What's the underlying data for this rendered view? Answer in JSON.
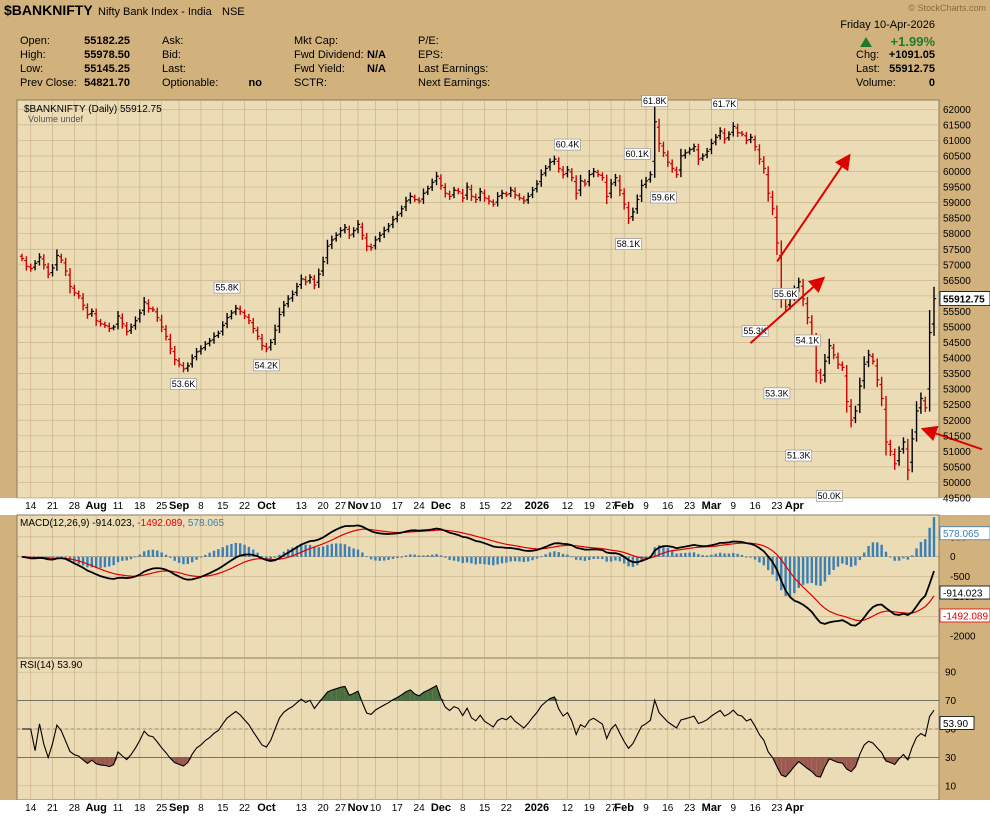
{
  "header": {
    "symbol": "$BANKNIFTY",
    "name": "Nifty Bank Index - India",
    "exchange": "NSE",
    "watermark": "© StockCharts.com",
    "date": "Friday  10-Apr-2026",
    "change_pct": "+1.99%",
    "left": [
      [
        "Open:",
        "55182.25"
      ],
      [
        "High:",
        "55978.50"
      ],
      [
        "Low:",
        "55145.25"
      ],
      [
        "Prev Close:",
        "54821.70"
      ]
    ],
    "mid1": [
      [
        "Ask:",
        ""
      ],
      [
        "Bid:",
        ""
      ],
      [
        "Last:",
        ""
      ],
      [
        "Optionable:",
        "no"
      ]
    ],
    "mid2": [
      [
        "Mkt Cap:",
        ""
      ],
      [
        "Fwd Dividend:",
        "N/A"
      ],
      [
        "Fwd Yield:",
        "N/A"
      ],
      [
        "SCTR:",
        ""
      ]
    ],
    "mid3": [
      "P/E:",
      "EPS:",
      "Last Earnings:",
      "Next Earnings:"
    ],
    "right": [
      [
        "Chg:",
        "+1091.05"
      ],
      [
        "Last:",
        "55912.75"
      ],
      [
        "Volume:",
        "0"
      ]
    ]
  },
  "colors": {
    "panel_bg": "#ecdcb6",
    "header_bg": "#d2b27c",
    "up_bar": "#000000",
    "down_bar": "#cc0000",
    "macd_line": "#000000",
    "signal_line": "#e00000",
    "histogram": "#3a7fb5",
    "rsi_overbought_fill": "#4a6e40",
    "rsi_oversold_fill": "#9a5a50",
    "arrow": "#e00000"
  },
  "chart_data": [
    {
      "type": "ohlc",
      "title": "$BANKNIFTY (Daily) 55912.75",
      "subtitle": "Volume undef",
      "ylim": [
        49500,
        62300
      ],
      "yticks": [
        49500,
        50000,
        50500,
        51000,
        51500,
        52000,
        52500,
        53000,
        53500,
        54000,
        54500,
        55000,
        55500,
        56000,
        56500,
        57000,
        57500,
        58000,
        58500,
        59000,
        59500,
        60000,
        60500,
        61000,
        61500,
        62000
      ],
      "last_value": "55912.75",
      "annotations": [
        {
          "text": "55.8K",
          "index": 47,
          "value": 55800,
          "pos": "above"
        },
        {
          "text": "53.6K",
          "index": 37,
          "value": 53600,
          "pos": "below"
        },
        {
          "text": "54.2K",
          "index": 56,
          "value": 54200,
          "pos": "below"
        },
        {
          "text": "60.4K",
          "index": 125,
          "value": 60400,
          "pos": "above"
        },
        {
          "text": "61.8K",
          "index": 145,
          "value": 61800,
          "pos": "above"
        },
        {
          "text": "61.7K",
          "index": 161,
          "value": 61700,
          "pos": "above"
        },
        {
          "text": "60.1K",
          "index": 141,
          "value": 60100,
          "pos": "above"
        },
        {
          "text": "59.6K",
          "index": 147,
          "value": 59600,
          "pos": "below"
        },
        {
          "text": "58.1K",
          "index": 139,
          "value": 58100,
          "pos": "below"
        },
        {
          "text": "55.6K",
          "index": 175,
          "value": 55600,
          "pos": "above"
        },
        {
          "text": "55.3K",
          "index": 168,
          "value": 55300,
          "pos": "below"
        },
        {
          "text": "54.1K",
          "index": 180,
          "value": 54100,
          "pos": "above"
        },
        {
          "text": "53.3K",
          "index": 173,
          "value": 53300,
          "pos": "below"
        },
        {
          "text": "51.3K",
          "index": 178,
          "value": 51300,
          "pos": "below"
        },
        {
          "text": "50.0K",
          "index": 185,
          "value": 50000,
          "pos": "below"
        }
      ],
      "close": [
        57200,
        56950,
        56880,
        57050,
        57250,
        57000,
        56700,
        56900,
        57300,
        57150,
        56800,
        56300,
        56100,
        56000,
        55700,
        55400,
        55500,
        55200,
        55100,
        55050,
        54950,
        55000,
        55350,
        55100,
        54850,
        55000,
        55200,
        55450,
        55800,
        55600,
        55550,
        55300,
        55000,
        54700,
        54300,
        53950,
        53800,
        53650,
        53750,
        54000,
        54200,
        54300,
        54450,
        54550,
        54700,
        54800,
        55050,
        55300,
        55450,
        55600,
        55500,
        55350,
        55200,
        54950,
        54700,
        54400,
        54300,
        54500,
        54900,
        55400,
        55700,
        55900,
        56050,
        56300,
        56550,
        56450,
        56600,
        56350,
        56700,
        57100,
        57600,
        57800,
        57950,
        58100,
        58200,
        57950,
        58100,
        58300,
        57950,
        57600,
        57550,
        57800,
        57950,
        58100,
        58250,
        58450,
        58600,
        58800,
        59050,
        59200,
        59100,
        59050,
        59300,
        59450,
        59650,
        59850,
        59550,
        59300,
        59200,
        59400,
        59350,
        59150,
        59500,
        59200,
        59100,
        59350,
        59150,
        59050,
        58950,
        59200,
        59300,
        59250,
        59400,
        59250,
        59150,
        59050,
        59200,
        59400,
        59600,
        59900,
        60100,
        60300,
        60400,
        60100,
        59900,
        60050,
        59800,
        59300,
        59700,
        59600,
        59900,
        60000,
        59900,
        59800,
        59200,
        59600,
        59800,
        59400,
        58950,
        58500,
        58700,
        59100,
        59550,
        59700,
        59900,
        61600,
        60900,
        60600,
        60300,
        60100,
        59900,
        60500,
        60600,
        60700,
        60800,
        60400,
        60500,
        60650,
        60900,
        61100,
        61300,
        61050,
        61200,
        61450,
        61250,
        61200,
        61000,
        61100,
        60800,
        60400,
        60100,
        59300,
        58800,
        57700,
        56100,
        55650,
        55900,
        56200,
        56450,
        55900,
        55300,
        54700,
        53600,
        53300,
        53900,
        54400,
        54100,
        53800,
        53700,
        52600,
        52000,
        52300,
        53100,
        53800,
        54100,
        53900,
        53300,
        52700,
        51300,
        51000,
        50600,
        51000,
        51300,
        50400,
        51400,
        52300,
        52700,
        52400,
        54821.7,
        55912.75
      ],
      "x_ticks": [
        {
          "label": "14",
          "index": 2
        },
        {
          "label": "21",
          "index": 7
        },
        {
          "label": "28",
          "index": 12
        },
        {
          "label": "Aug",
          "index": 17,
          "bold": true
        },
        {
          "label": "11",
          "index": 22
        },
        {
          "label": "18",
          "index": 27
        },
        {
          "label": "25",
          "index": 32
        },
        {
          "label": "Sep",
          "index": 36,
          "bold": true
        },
        {
          "label": "8",
          "index": 41
        },
        {
          "label": "15",
          "index": 46
        },
        {
          "label": "22",
          "index": 51
        },
        {
          "label": "Oct",
          "index": 56,
          "bold": true
        },
        {
          "label": "13",
          "index": 64
        },
        {
          "label": "20",
          "index": 69
        },
        {
          "label": "27",
          "index": 73
        },
        {
          "label": "Nov",
          "index": 77,
          "bold": true
        },
        {
          "label": "10",
          "index": 81
        },
        {
          "label": "17",
          "index": 86
        },
        {
          "label": "24",
          "index": 91
        },
        {
          "label": "Dec",
          "index": 96,
          "bold": true
        },
        {
          "label": "8",
          "index": 101
        },
        {
          "label": "15",
          "index": 106
        },
        {
          "label": "22",
          "index": 111
        },
        {
          "label": "2026",
          "index": 118,
          "bold": true
        },
        {
          "label": "12",
          "index": 125
        },
        {
          "label": "19",
          "index": 130
        },
        {
          "label": "27",
          "index": 135
        },
        {
          "label": "Feb",
          "index": 138,
          "bold": true
        },
        {
          "label": "9",
          "index": 143
        },
        {
          "label": "16",
          "index": 148
        },
        {
          "label": "23",
          "index": 153
        },
        {
          "label": "Mar",
          "index": 158,
          "bold": true
        },
        {
          "label": "9",
          "index": 163
        },
        {
          "label": "16",
          "index": 168
        },
        {
          "label": "23",
          "index": 173
        },
        {
          "label": "Apr",
          "index": 177,
          "bold": true
        }
      ]
    },
    {
      "type": "macd",
      "title": "MACD(12,26,9)",
      "macd_value": "-914.023",
      "signal_value": "-1492.089",
      "hist_value": "578.065",
      "ylim": [
        -2550,
        1050
      ],
      "yticks": [
        500,
        0,
        -500,
        -1000,
        -1500,
        -2000
      ]
    },
    {
      "type": "rsi",
      "title": "RSI(14)",
      "value": "53.90",
      "ylim": [
        0,
        100
      ],
      "yticks": [
        90,
        70,
        50,
        30,
        10
      ],
      "levels": [
        70,
        30
      ]
    }
  ]
}
